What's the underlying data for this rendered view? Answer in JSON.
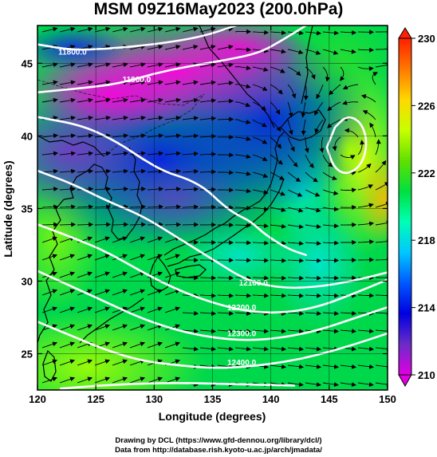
{
  "title": "MSM 09Z16May2023 (200.0hPa)",
  "map": {
    "xlabel": "Longitude (degrees)",
    "ylabel": "Latitude  (degrees)",
    "lon_range": [
      120,
      150
    ],
    "lat_range": [
      22.5,
      47.6
    ],
    "lon_ticks": [
      120,
      125,
      130,
      135,
      140,
      145,
      150
    ],
    "lat_ticks": [
      25,
      30,
      35,
      40,
      45
    ],
    "grid": true,
    "fill_variable": "temperature (K)",
    "contour_variable": "geopotential height (m)",
    "contour_labels": [
      {
        "text": "11800.0",
        "lon": 123.0,
        "lat": 45.6
      },
      {
        "text": "11900.0",
        "lon": 128.5,
        "lat": 43.7
      },
      {
        "text": "12100.0",
        "lon": 138.5,
        "lat": 29.7
      },
      {
        "text": "12200.0",
        "lon": 137.5,
        "lat": 28.0
      },
      {
        "text": "12300.0",
        "lon": 137.5,
        "lat": 26.2
      },
      {
        "text": "12400.0",
        "lon": 137.5,
        "lat": 24.2
      }
    ],
    "contours": [
      {
        "name": "contour-11800",
        "points": [
          [
            120,
            46.3
          ],
          [
            123,
            45.9
          ],
          [
            126,
            46.0
          ],
          [
            130,
            46.3
          ],
          [
            134,
            46.8
          ],
          [
            137,
            47.6
          ]
        ]
      },
      {
        "name": "contour-11900",
        "points": [
          [
            120,
            43.0
          ],
          [
            124,
            43.3
          ],
          [
            127,
            43.6
          ],
          [
            130,
            44.3
          ],
          [
            133,
            44.8
          ],
          [
            136,
            45.2
          ],
          [
            139,
            45.7
          ],
          [
            141,
            46.6
          ],
          [
            143,
            47.6
          ]
        ]
      },
      {
        "name": "contour-12000",
        "points": [
          [
            120,
            41.3
          ],
          [
            124,
            40.7
          ],
          [
            127,
            39.5
          ],
          [
            129,
            38.4
          ],
          [
            131,
            37.5
          ],
          [
            133,
            37.0
          ],
          [
            134.5,
            36.3
          ],
          [
            135.8,
            35.3
          ],
          [
            137,
            34.6
          ],
          [
            138.3,
            34.1
          ],
          [
            139.5,
            33.2
          ],
          [
            141.5,
            32.2
          ],
          [
            143,
            31.8
          ]
        ]
      },
      {
        "name": "contour-12100",
        "points": [
          [
            120,
            37.6
          ],
          [
            123,
            36.7
          ],
          [
            126,
            35.5
          ],
          [
            129,
            34.5
          ],
          [
            132,
            33.0
          ],
          [
            135,
            31.5
          ],
          [
            138,
            30.0
          ],
          [
            141,
            29.5
          ],
          [
            144,
            29.6
          ],
          [
            147,
            30.0
          ],
          [
            150,
            30.6
          ]
        ]
      },
      {
        "name": "contour-12200",
        "points": [
          [
            120,
            33.9
          ],
          [
            123,
            33.0
          ],
          [
            126,
            32.0
          ],
          [
            129,
            30.6
          ],
          [
            132,
            29.4
          ],
          [
            135,
            28.5
          ],
          [
            138,
            27.9
          ],
          [
            141,
            27.8
          ],
          [
            144,
            28.2
          ],
          [
            147,
            29.1
          ],
          [
            150,
            30.1
          ]
        ]
      },
      {
        "name": "contour-12300",
        "points": [
          [
            120,
            30.7
          ],
          [
            123,
            29.6
          ],
          [
            126,
            28.5
          ],
          [
            129,
            27.4
          ],
          [
            132,
            26.6
          ],
          [
            135,
            26.1
          ],
          [
            138,
            25.9
          ],
          [
            141,
            26.1
          ],
          [
            144,
            26.6
          ],
          [
            147,
            27.4
          ],
          [
            150,
            28.2
          ]
        ]
      },
      {
        "name": "contour-12400",
        "points": [
          [
            120,
            27.2
          ],
          [
            123,
            26.2
          ],
          [
            126,
            25.2
          ],
          [
            129,
            24.5
          ],
          [
            132,
            24.2
          ],
          [
            135,
            24.0
          ],
          [
            138,
            24.1
          ],
          [
            141,
            24.4
          ],
          [
            144,
            24.9
          ],
          [
            147,
            25.6
          ],
          [
            150,
            26.4
          ]
        ]
      },
      {
        "name": "contour-12500",
        "points": [
          [
            122,
            22.6
          ],
          [
            127,
            22.9
          ],
          [
            132,
            23.0
          ],
          [
            137,
            22.9
          ],
          [
            142,
            22.8
          ]
        ]
      },
      {
        "name": "contour-high-ring",
        "closed": true,
        "points": [
          [
            145.5,
            40.6
          ],
          [
            146.5,
            41.4
          ],
          [
            147.7,
            41.0
          ],
          [
            148.3,
            39.6
          ],
          [
            147.8,
            38.0
          ],
          [
            146.5,
            37.3
          ],
          [
            145.4,
            37.8
          ],
          [
            144.8,
            39.2
          ]
        ]
      }
    ]
  },
  "colorbar": {
    "min": 210,
    "max": 230,
    "ticks": [
      210,
      214,
      218,
      222,
      226,
      230
    ],
    "colors": [
      "#e000e0",
      "#6b2cc8",
      "#0000e0",
      "#0058ff",
      "#00c8ff",
      "#00ffb4",
      "#00e040",
      "#60e000",
      "#c8ff00",
      "#ffd800",
      "#ff7800",
      "#ff2000"
    ]
  },
  "credits": {
    "line1": "Drawing by DCL (https://www.gfd-dennou.org/library/dcl/)",
    "line2": "Data from http://database.rish.kyoto-u.ac.jp/arch/jmadata/"
  }
}
